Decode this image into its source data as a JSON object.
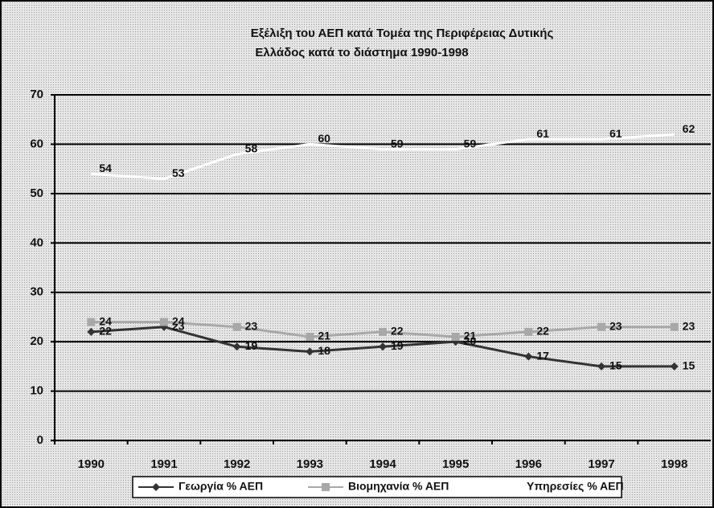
{
  "chart_data": {
    "type": "line",
    "title": [
      "Εξέλιξη του ΑΕΠ κατά Τομέα της Περιφέρειας Δυτικής",
      "Ελλάδος κατά το διάστημα 1990-1998"
    ],
    "categories": [
      "1990",
      "1991",
      "1992",
      "1993",
      "1994",
      "1995",
      "1996",
      "1997",
      "1998"
    ],
    "series": [
      {
        "name": "Γεωργία % ΑΕΠ",
        "color": "#333333",
        "marker": "diamond",
        "values": [
          22,
          23,
          19,
          18,
          19,
          20,
          17,
          15,
          15
        ]
      },
      {
        "name": "Βιομηχανία % ΑΕΠ",
        "color": "#a8a8a8",
        "marker": "square",
        "values": [
          24,
          24,
          23,
          21,
          22,
          21,
          22,
          23,
          23
        ]
      },
      {
        "name": "Υπηρεσίες % ΑΕΠ",
        "color": "#ffffff",
        "marker": "none",
        "values": [
          54,
          53,
          58,
          60,
          59,
          59,
          61,
          61,
          62
        ]
      }
    ],
    "ylim": [
      0,
      70
    ],
    "yticks": [
      0,
      10,
      20,
      30,
      40,
      50,
      60,
      70
    ],
    "grid": true,
    "legend": "bottom"
  }
}
